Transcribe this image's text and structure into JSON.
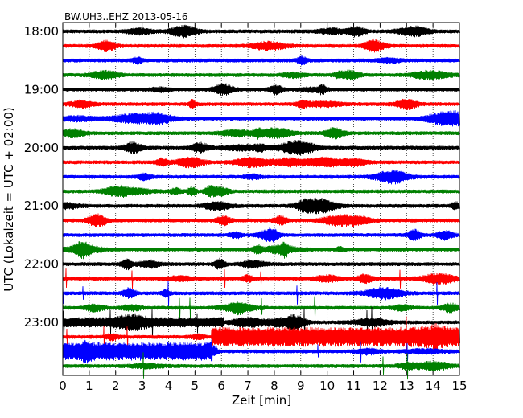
{
  "chart_data": {
    "type": "line",
    "title": "BW.UH3..EHZ 2013-05-16",
    "xlabel": "Zeit  [min]",
    "ylabel": "UTC (Lokalzeit = UTC + 02:00)",
    "xlim": [
      0,
      15
    ],
    "x_ticks": [
      "0",
      "1",
      "2",
      "3",
      "4",
      "5",
      "6",
      "7",
      "8",
      "9",
      "10",
      "11",
      "12",
      "13",
      "14",
      "15"
    ],
    "y_ticks": [
      "18:00",
      "19:00",
      "20:00",
      "21:00",
      "22:00",
      "23:00"
    ],
    "grid": "vertical-dotted",
    "trace_colors": [
      "#000000",
      "#ff0000",
      "#0000ff",
      "#008000"
    ],
    "traces": 24
  }
}
